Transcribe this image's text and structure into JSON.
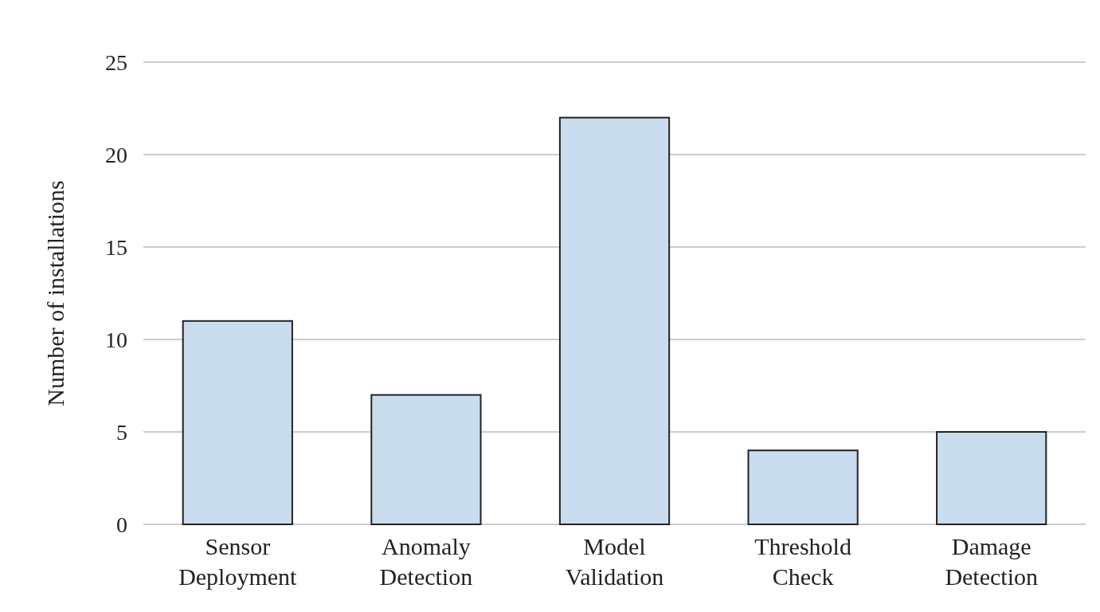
{
  "chart_data": {
    "type": "bar",
    "ylabel": "Number of installations",
    "categories": [
      "Sensor Deployment",
      "Anomaly Detection",
      "Model Validation",
      "Threshold Check",
      "Damage Detection"
    ],
    "values": [
      11,
      7,
      22,
      4,
      5
    ],
    "color": "#c9dcee",
    "ylim": [
      0,
      25
    ],
    "yticks": [
      0,
      5,
      10,
      15,
      20,
      25
    ],
    "grid": "y"
  }
}
